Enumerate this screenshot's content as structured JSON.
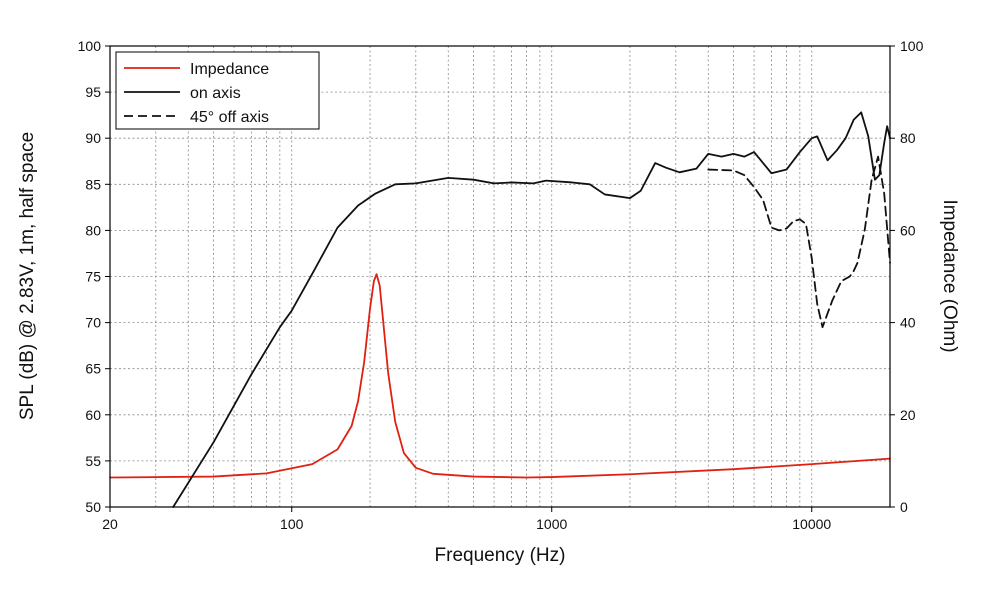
{
  "chart_data": {
    "type": "line",
    "xlabel": "Frequency (Hz)",
    "ylabel": "SPL (dB) @ 2.83V, 1m, half space",
    "y2label": "Impedance (Ohm)",
    "xscale": "log",
    "xlim": [
      20,
      20000
    ],
    "ylim": [
      50,
      100
    ],
    "y2lim": [
      0,
      100
    ],
    "grid": true,
    "legend_position": "top-left",
    "x_ticks": [
      {
        "value": 20,
        "label": "20"
      },
      {
        "value": 100,
        "label": "100"
      },
      {
        "value": 1000,
        "label": "1000"
      },
      {
        "value": 10000,
        "label": "10000"
      }
    ],
    "y_ticks": [
      {
        "value": 50,
        "label": "50"
      },
      {
        "value": 55,
        "label": "55"
      },
      {
        "value": 60,
        "label": "60"
      },
      {
        "value": 65,
        "label": "65"
      },
      {
        "value": 70,
        "label": "70"
      },
      {
        "value": 75,
        "label": "75"
      },
      {
        "value": 80,
        "label": "80"
      },
      {
        "value": 85,
        "label": "85"
      },
      {
        "value": 90,
        "label": "90"
      },
      {
        "value": 95,
        "label": "95"
      },
      {
        "value": 100,
        "label": "100"
      }
    ],
    "y2_ticks": [
      {
        "value": 0,
        "label": "0"
      },
      {
        "value": 20,
        "label": "20"
      },
      {
        "value": 40,
        "label": "40"
      },
      {
        "value": 60,
        "label": "60"
      },
      {
        "value": 80,
        "label": "80"
      },
      {
        "value": 100,
        "label": "100"
      }
    ],
    "series": [
      {
        "name": "Impedance",
        "axis": "right",
        "color": "#e02010",
        "dash": "none",
        "points": [
          [
            20,
            6.4
          ],
          [
            50,
            6.6
          ],
          [
            80,
            7.3
          ],
          [
            120,
            9.3
          ],
          [
            150,
            12.5
          ],
          [
            170,
            17.6
          ],
          [
            180,
            23
          ],
          [
            190,
            31.5
          ],
          [
            200,
            43
          ],
          [
            207,
            49
          ],
          [
            212,
            50.5
          ],
          [
            218,
            48
          ],
          [
            225,
            40
          ],
          [
            235,
            29
          ],
          [
            250,
            18.5
          ],
          [
            270,
            11.7
          ],
          [
            300,
            8.5
          ],
          [
            350,
            7.2
          ],
          [
            500,
            6.6
          ],
          [
            800,
            6.4
          ],
          [
            1000,
            6.5
          ],
          [
            2000,
            7.1
          ],
          [
            5000,
            8.2
          ],
          [
            10000,
            9.3
          ],
          [
            20000,
            10.5
          ]
        ]
      },
      {
        "name": "on axis",
        "axis": "left",
        "color": "#111111",
        "dash": "none",
        "points": [
          [
            35,
            49.8
          ],
          [
            50,
            57
          ],
          [
            70,
            64.4
          ],
          [
            90,
            69.5
          ],
          [
            100,
            71.3
          ],
          [
            120,
            75.3
          ],
          [
            150,
            80.3
          ],
          [
            180,
            82.7
          ],
          [
            210,
            84
          ],
          [
            250,
            85
          ],
          [
            300,
            85.1
          ],
          [
            400,
            85.7
          ],
          [
            500,
            85.5
          ],
          [
            600,
            85.1
          ],
          [
            700,
            85.2
          ],
          [
            850,
            85.1
          ],
          [
            950,
            85.4
          ],
          [
            1200,
            85.2
          ],
          [
            1400,
            85
          ],
          [
            1600,
            83.9
          ],
          [
            2000,
            83.5
          ],
          [
            2200,
            84.3
          ],
          [
            2500,
            87.3
          ],
          [
            2750,
            86.8
          ],
          [
            3100,
            86.3
          ],
          [
            3600,
            86.7
          ],
          [
            4000,
            88.3
          ],
          [
            4500,
            88
          ],
          [
            5000,
            88.3
          ],
          [
            5500,
            88
          ],
          [
            6000,
            88.5
          ],
          [
            6500,
            87.3
          ],
          [
            7000,
            86.2
          ],
          [
            8000,
            86.6
          ],
          [
            9000,
            88.5
          ],
          [
            10000,
            90
          ],
          [
            10500,
            90.2
          ],
          [
            11500,
            87.6
          ],
          [
            12500,
            88.7
          ],
          [
            13500,
            90
          ],
          [
            14500,
            92
          ],
          [
            15500,
            92.8
          ],
          [
            16500,
            90.2
          ],
          [
            17500,
            85.5
          ],
          [
            18200,
            86
          ],
          [
            19000,
            89.5
          ],
          [
            19500,
            91.3
          ],
          [
            20000,
            90
          ]
        ]
      },
      {
        "name": "45° off axis",
        "axis": "left",
        "color": "#111111",
        "dash": "9 5",
        "points": [
          [
            4000,
            86.6
          ],
          [
            5000,
            86.5
          ],
          [
            5500,
            86
          ],
          [
            6000,
            84.7
          ],
          [
            6500,
            83.3
          ],
          [
            7000,
            80.3
          ],
          [
            7500,
            80
          ],
          [
            8000,
            80.2
          ],
          [
            8500,
            81
          ],
          [
            9000,
            81.2
          ],
          [
            9500,
            80.7
          ],
          [
            10000,
            77
          ],
          [
            10500,
            72
          ],
          [
            11000,
            69.5
          ],
          [
            12000,
            72.4
          ],
          [
            13000,
            74.5
          ],
          [
            14000,
            75
          ],
          [
            14500,
            75.6
          ],
          [
            15000,
            76.5
          ],
          [
            16000,
            80.1
          ],
          [
            17000,
            85.5
          ],
          [
            18000,
            88
          ],
          [
            19000,
            84
          ],
          [
            20000,
            76.5
          ]
        ]
      }
    ]
  }
}
